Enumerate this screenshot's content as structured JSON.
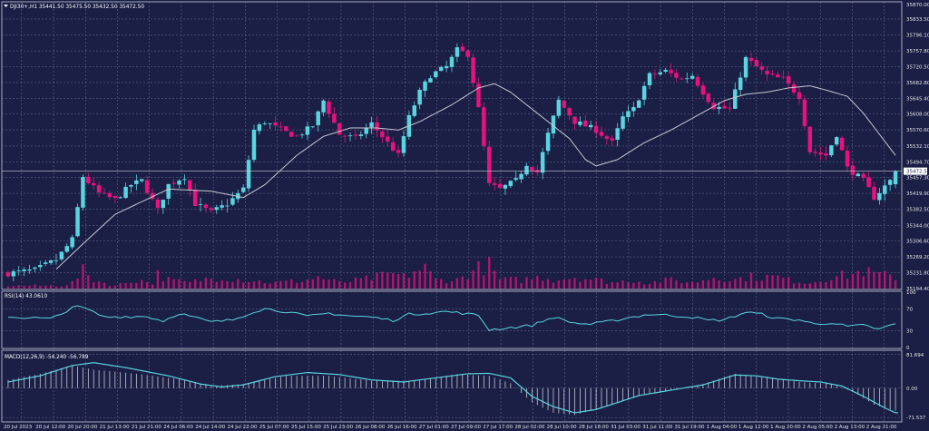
{
  "header": {
    "symbol_line": "DJI30+,H1  35441.50 35475.50 35432.50 35472.50"
  },
  "theme": {
    "background": "#1b1f45",
    "grid": "#6d7398",
    "bull": "#59d5e0",
    "bear": "#e8127e",
    "ma_line": "#c8c8d2",
    "rsi_line": "#59d5e0",
    "macd_line": "#59d5e0",
    "macd_hist": "#c8c8d2",
    "volume": "#e8127e",
    "price_tag_bg": "#ffffff",
    "price_tag_text": "#1b1f45"
  },
  "chart_data": {
    "type": "candlestick",
    "timeframe": "H1",
    "current_price": 35472.5,
    "last_bar": {
      "open": 35441.5,
      "high": 35475.5,
      "low": 35432.5,
      "close": 35472.5
    },
    "price_axis": {
      "ylim": [
        35194.0,
        35870.0
      ],
      "ticks": [
        "35870.00",
        "35833.50",
        "35796.10",
        "35757.80",
        "35720.50",
        "35682.80",
        "35645.40",
        "35608.00",
        "35570.60",
        "35532.10",
        "35494.70",
        "35457.30",
        "35419.90",
        "35382.50",
        "35344.00",
        "35306.60",
        "35269.20",
        "35231.80",
        "35194.40"
      ]
    },
    "time_axis": [
      "20 Jul 2023",
      "20 Jul 12:00",
      "20 Jul 20:00",
      "21 Jul 13:00",
      "21 Jul 21:00",
      "24 Jul 06:00",
      "24 Jul 14:00",
      "24 Jul 22:00",
      "25 Jul 07:00",
      "25 Jul 15:00",
      "25 Jul 23:00",
      "26 Jul 08:00",
      "26 Jul 16:00",
      "27 Jul 01:00",
      "27 Jul 09:00",
      "27 Jul 17:00",
      "28 Jul 02:00",
      "28 Jul 10:00",
      "28 Jul 18:00",
      "31 Jul 03:00",
      "31 Jul 11:00",
      "31 Jul 19:00",
      "1 Aug 04:00",
      "1 Aug 12:00",
      "1 Aug 20:00",
      "2 Aug 05:00",
      "2 Aug 13:00",
      "2 Aug 21:00"
    ],
    "close_path": [
      [
        0,
        35230
      ],
      [
        5,
        35238
      ],
      [
        9,
        35262
      ],
      [
        12,
        35310
      ],
      [
        14,
        35460
      ],
      [
        17,
        35420
      ],
      [
        20,
        35405
      ],
      [
        23,
        35440
      ],
      [
        25,
        35450
      ],
      [
        28,
        35380
      ],
      [
        30,
        35440
      ],
      [
        33,
        35460
      ],
      [
        35,
        35395
      ],
      [
        38,
        35375
      ],
      [
        41,
        35395
      ],
      [
        44,
        35430
      ],
      [
        46,
        35570
      ],
      [
        48,
        35590
      ],
      [
        51,
        35570
      ],
      [
        54,
        35555
      ],
      [
        57,
        35580
      ],
      [
        59,
        35640
      ],
      [
        62,
        35560
      ],
      [
        65,
        35550
      ],
      [
        68,
        35585
      ],
      [
        70,
        35555
      ],
      [
        73,
        35510
      ],
      [
        75,
        35600
      ],
      [
        77,
        35660
      ],
      [
        79,
        35700
      ],
      [
        82,
        35720
      ],
      [
        84,
        35760
      ],
      [
        86,
        35750
      ],
      [
        88,
        35620
      ],
      [
        90,
        35440
      ],
      [
        92,
        35430
      ],
      [
        95,
        35450
      ],
      [
        97,
        35490
      ],
      [
        99,
        35470
      ],
      [
        101,
        35560
      ],
      [
        103,
        35640
      ],
      [
        106,
        35590
      ],
      [
        108,
        35580
      ],
      [
        110,
        35570
      ],
      [
        113,
        35540
      ],
      [
        115,
        35600
      ],
      [
        117,
        35620
      ],
      [
        120,
        35700
      ],
      [
        123,
        35710
      ],
      [
        126,
        35690
      ],
      [
        128,
        35700
      ],
      [
        130,
        35660
      ],
      [
        132,
        35625
      ],
      [
        135,
        35620
      ],
      [
        138,
        35740
      ],
      [
        140,
        35720
      ],
      [
        142,
        35700
      ],
      [
        145,
        35690
      ],
      [
        148,
        35650
      ],
      [
        150,
        35520
      ],
      [
        153,
        35510
      ],
      [
        155,
        35560
      ],
      [
        157,
        35480
      ],
      [
        160,
        35450
      ],
      [
        162,
        35410
      ],
      [
        165,
        35450
      ],
      [
        166,
        35472
      ]
    ],
    "ma_path": [
      [
        9,
        35240
      ],
      [
        14,
        35300
      ],
      [
        20,
        35370
      ],
      [
        25,
        35400
      ],
      [
        30,
        35430
      ],
      [
        38,
        35425
      ],
      [
        44,
        35410
      ],
      [
        48,
        35440
      ],
      [
        54,
        35510
      ],
      [
        59,
        35555
      ],
      [
        64,
        35575
      ],
      [
        69,
        35575
      ],
      [
        73,
        35570
      ],
      [
        77,
        35590
      ],
      [
        83,
        35630
      ],
      [
        88,
        35670
      ],
      [
        91,
        35680
      ],
      [
        94,
        35660
      ],
      [
        99,
        35610
      ],
      [
        105,
        35550
      ],
      [
        108,
        35500
      ],
      [
        110,
        35485
      ],
      [
        114,
        35500
      ],
      [
        119,
        35540
      ],
      [
        124,
        35570
      ],
      [
        129,
        35605
      ],
      [
        134,
        35640
      ],
      [
        138,
        35655
      ],
      [
        142,
        35660
      ],
      [
        146,
        35670
      ],
      [
        150,
        35675
      ],
      [
        153,
        35665
      ],
      [
        157,
        35650
      ],
      [
        160,
        35610
      ],
      [
        163,
        35560
      ],
      [
        166,
        35510
      ]
    ],
    "volume_path": [
      [
        10,
        1
      ],
      [
        12,
        2
      ],
      [
        14,
        6
      ],
      [
        16,
        3
      ],
      [
        18,
        2
      ],
      [
        20,
        1
      ],
      [
        24,
        3
      ],
      [
        27,
        2
      ],
      [
        28,
        5
      ],
      [
        30,
        3
      ],
      [
        34,
        2
      ],
      [
        36,
        3
      ],
      [
        40,
        4
      ],
      [
        44,
        3
      ],
      [
        50,
        2
      ],
      [
        56,
        3
      ],
      [
        58,
        4
      ],
      [
        62,
        2
      ],
      [
        66,
        3
      ],
      [
        72,
        5
      ],
      [
        74,
        4
      ],
      [
        76,
        6
      ],
      [
        78,
        7
      ],
      [
        80,
        3
      ],
      [
        84,
        3
      ],
      [
        86,
        5
      ],
      [
        88,
        7
      ],
      [
        90,
        8
      ],
      [
        92,
        3
      ],
      [
        96,
        3
      ],
      [
        100,
        4
      ],
      [
        102,
        3
      ],
      [
        106,
        4
      ],
      [
        110,
        3
      ],
      [
        114,
        2
      ],
      [
        116,
        3
      ],
      [
        120,
        2
      ],
      [
        124,
        3
      ],
      [
        128,
        2
      ],
      [
        132,
        4
      ],
      [
        136,
        3
      ],
      [
        138,
        4
      ],
      [
        144,
        4
      ],
      [
        146,
        3
      ],
      [
        150,
        2
      ],
      [
        154,
        4
      ],
      [
        158,
        5
      ],
      [
        160,
        6
      ],
      [
        162,
        5
      ],
      [
        166,
        4
      ]
    ],
    "rsi": {
      "label": "RSI(14) 43.0610",
      "levels": [
        "100",
        "70",
        "30",
        "0"
      ],
      "ylim": [
        0,
        100
      ],
      "path": [
        [
          0,
          55
        ],
        [
          4,
          54
        ],
        [
          8,
          52
        ],
        [
          10,
          60
        ],
        [
          12,
          74
        ],
        [
          14,
          72
        ],
        [
          18,
          55
        ],
        [
          22,
          56
        ],
        [
          26,
          56
        ],
        [
          29,
          48
        ],
        [
          32,
          62
        ],
        [
          35,
          54
        ],
        [
          38,
          46
        ],
        [
          42,
          50
        ],
        [
          46,
          65
        ],
        [
          48,
          70
        ],
        [
          52,
          65
        ],
        [
          56,
          56
        ],
        [
          60,
          62
        ],
        [
          64,
          57
        ],
        [
          68,
          55
        ],
        [
          72,
          49
        ],
        [
          75,
          60
        ],
        [
          78,
          62
        ],
        [
          82,
          65
        ],
        [
          85,
          62
        ],
        [
          88,
          58
        ],
        [
          90,
          32
        ],
        [
          94,
          36
        ],
        [
          98,
          40
        ],
        [
          102,
          55
        ],
        [
          106,
          44
        ],
        [
          109,
          42
        ],
        [
          113,
          48
        ],
        [
          116,
          54
        ],
        [
          120,
          60
        ],
        [
          124,
          58
        ],
        [
          128,
          55
        ],
        [
          131,
          49
        ],
        [
          134,
          50
        ],
        [
          138,
          64
        ],
        [
          141,
          60
        ],
        [
          144,
          52
        ],
        [
          148,
          50
        ],
        [
          151,
          42
        ],
        [
          154,
          45
        ],
        [
          157,
          38
        ],
        [
          160,
          40
        ],
        [
          163,
          33
        ],
        [
          166,
          43
        ]
      ]
    },
    "macd": {
      "label": "MACD(12,26,9) -54.240 -56.789",
      "ticks": [
        "81.694",
        "0.00",
        "-71.537"
      ],
      "ylim": [
        -80,
        90
      ],
      "line_path": [
        [
          0,
          15
        ],
        [
          6,
          30
        ],
        [
          12,
          55
        ],
        [
          16,
          62
        ],
        [
          22,
          50
        ],
        [
          30,
          30
        ],
        [
          36,
          10
        ],
        [
          40,
          3
        ],
        [
          44,
          8
        ],
        [
          50,
          28
        ],
        [
          56,
          38
        ],
        [
          62,
          33
        ],
        [
          68,
          20
        ],
        [
          74,
          15
        ],
        [
          80,
          25
        ],
        [
          86,
          35
        ],
        [
          90,
          36
        ],
        [
          94,
          25
        ],
        [
          98,
          -20
        ],
        [
          102,
          -45
        ],
        [
          106,
          -60
        ],
        [
          110,
          -52
        ],
        [
          114,
          -35
        ],
        [
          118,
          -18
        ],
        [
          124,
          -5
        ],
        [
          130,
          8
        ],
        [
          136,
          32
        ],
        [
          140,
          30
        ],
        [
          144,
          22
        ],
        [
          148,
          18
        ],
        [
          152,
          15
        ],
        [
          156,
          5
        ],
        [
          160,
          -20
        ],
        [
          164,
          -48
        ],
        [
          166,
          -60
        ]
      ],
      "hist_path": [
        [
          0,
          20
        ],
        [
          6,
          35
        ],
        [
          12,
          55
        ],
        [
          16,
          45
        ],
        [
          24,
          35
        ],
        [
          32,
          22
        ],
        [
          38,
          5
        ],
        [
          44,
          10
        ],
        [
          52,
          30
        ],
        [
          60,
          30
        ],
        [
          68,
          18
        ],
        [
          76,
          18
        ],
        [
          84,
          34
        ],
        [
          90,
          30
        ],
        [
          94,
          12
        ],
        [
          98,
          -35
        ],
        [
          102,
          -60
        ],
        [
          106,
          -65
        ],
        [
          112,
          -45
        ],
        [
          118,
          -20
        ],
        [
          124,
          -5
        ],
        [
          130,
          10
        ],
        [
          136,
          35
        ],
        [
          142,
          25
        ],
        [
          148,
          15
        ],
        [
          154,
          10
        ],
        [
          158,
          -8
        ],
        [
          162,
          -40
        ],
        [
          166,
          -55
        ]
      ]
    }
  }
}
